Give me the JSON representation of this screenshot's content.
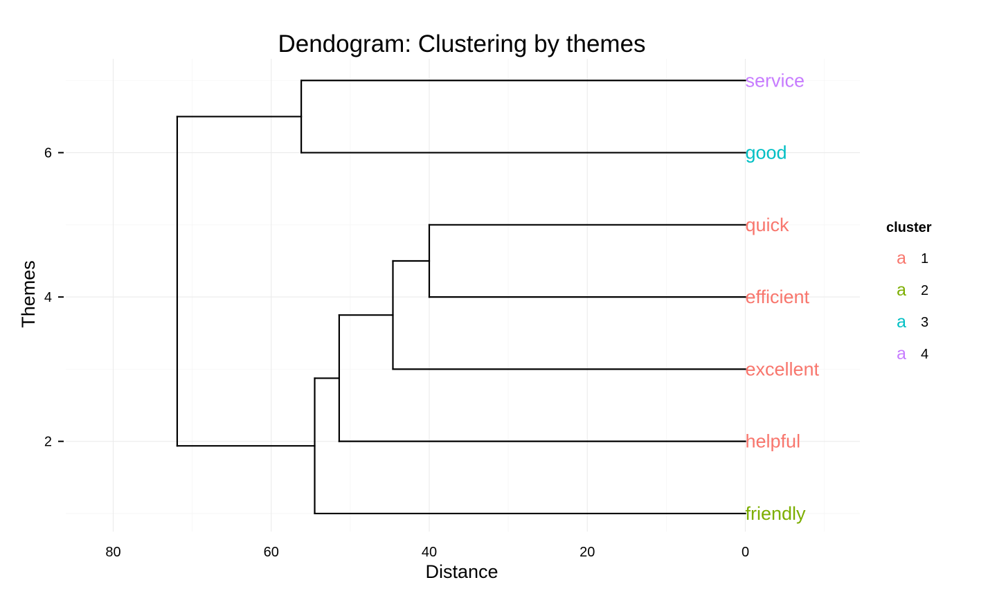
{
  "chart_data": {
    "type": "dendrogram",
    "title": "Dendogram: Clustering by themes",
    "xlabel": "Distance",
    "ylabel": "Themes",
    "x_reversed": true,
    "xlim": [
      86,
      -14.5
    ],
    "ylim": [
      0.75,
      7.3
    ],
    "x_ticks": [
      80,
      60,
      40,
      20,
      0
    ],
    "x_tick_labels": [
      "80",
      "60",
      "40",
      "20",
      "0"
    ],
    "y_ticks": [
      2,
      4,
      6
    ],
    "y_tick_labels": [
      "2",
      "4",
      "6"
    ],
    "grid": true,
    "legend_position": "right",
    "legend": {
      "title": "cluster",
      "key_glyph": "a",
      "items": [
        {
          "label": "1",
          "color": "#F8766D"
        },
        {
          "label": "2",
          "color": "#7CAE00"
        },
        {
          "label": "3",
          "color": "#00BFC4"
        },
        {
          "label": "4",
          "color": "#C77CFF"
        }
      ]
    },
    "leaves": [
      {
        "label": "service",
        "y": 7,
        "cluster": "4",
        "color": "#C77CFF"
      },
      {
        "label": "good",
        "y": 6,
        "cluster": "3",
        "color": "#00BFC4"
      },
      {
        "label": "quick",
        "y": 5,
        "cluster": "1",
        "color": "#F8766D"
      },
      {
        "label": "efficient",
        "y": 4,
        "cluster": "1",
        "color": "#F8766D"
      },
      {
        "label": "excellent",
        "y": 3,
        "cluster": "1",
        "color": "#F8766D"
      },
      {
        "label": "helpful",
        "y": 2,
        "cluster": "1",
        "color": "#F8766D"
      },
      {
        "label": "friendly",
        "y": 1,
        "cluster": "2",
        "color": "#7CAE00"
      }
    ],
    "segments": [
      {
        "x": 0,
        "y": 7,
        "xend": 56.2,
        "yend": 7
      },
      {
        "x": 0,
        "y": 6,
        "xend": 56.2,
        "yend": 6
      },
      {
        "x": 56.2,
        "y": 6,
        "xend": 56.2,
        "yend": 7
      },
      {
        "x": 56.2,
        "y": 6.5,
        "xend": 71.9,
        "yend": 6.5
      },
      {
        "x": 0,
        "y": 5,
        "xend": 40.0,
        "yend": 5
      },
      {
        "x": 0,
        "y": 4,
        "xend": 40.0,
        "yend": 4
      },
      {
        "x": 40.0,
        "y": 4,
        "xend": 40.0,
        "yend": 5
      },
      {
        "x": 40.0,
        "y": 4.5,
        "xend": 44.6,
        "yend": 4.5
      },
      {
        "x": 0,
        "y": 3,
        "xend": 44.6,
        "yend": 3
      },
      {
        "x": 44.6,
        "y": 3,
        "xend": 44.6,
        "yend": 4.5
      },
      {
        "x": 44.6,
        "y": 3.75,
        "xend": 51.4,
        "yend": 3.75
      },
      {
        "x": 0,
        "y": 2,
        "xend": 51.4,
        "yend": 2
      },
      {
        "x": 51.4,
        "y": 2,
        "xend": 51.4,
        "yend": 3.75
      },
      {
        "x": 51.4,
        "y": 2.875,
        "xend": 54.5,
        "yend": 2.875
      },
      {
        "x": 0,
        "y": 1,
        "xend": 54.5,
        "yend": 1
      },
      {
        "x": 54.5,
        "y": 1,
        "xend": 54.5,
        "yend": 2.875
      },
      {
        "x": 54.5,
        "y": 1.9375,
        "xend": 71.9,
        "yend": 1.9375
      },
      {
        "x": 71.9,
        "y": 1.9375,
        "xend": 71.9,
        "yend": 6.5
      }
    ]
  }
}
